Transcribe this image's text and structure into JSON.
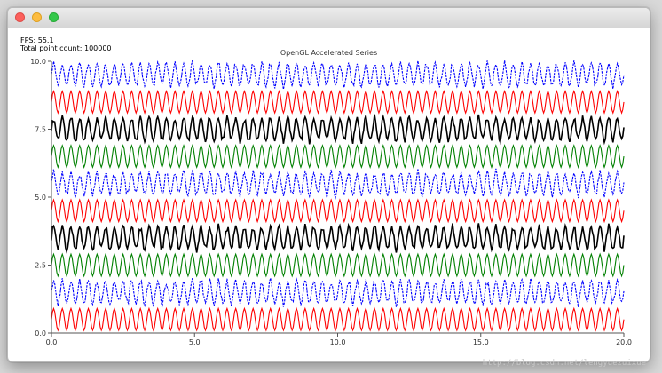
{
  "window": {
    "fps_label": "FPS: 55.1",
    "point_count_label": "Total point count: 100000"
  },
  "chart_data": {
    "type": "line",
    "title": "OpenGL Accelerated Series",
    "xlabel": "",
    "ylabel": "",
    "xlim": [
      0.0,
      20.0
    ],
    "ylim": [
      0.0,
      10.0
    ],
    "x_ticks": [
      "0.0",
      "5.0",
      "10.0",
      "15.0",
      "20.0"
    ],
    "y_ticks": [
      "0.0",
      "2.5",
      "5.0",
      "7.5",
      "10.0"
    ],
    "grid": false,
    "series": [
      {
        "color": "#ff0000",
        "style": "sine",
        "center": 0.5,
        "amplitude": 0.4,
        "cycles": 66
      },
      {
        "color": "#0000ff",
        "style": "noisy-dashed",
        "center": 1.5,
        "amplitude": 0.45,
        "cycles": 66
      },
      {
        "color": "#008000",
        "style": "sine",
        "center": 2.5,
        "amplitude": 0.4,
        "cycles": 66
      },
      {
        "color": "#000000",
        "style": "noisy",
        "center": 3.5,
        "amplitude": 0.45,
        "cycles": 66
      },
      {
        "color": "#ff0000",
        "style": "sine",
        "center": 4.5,
        "amplitude": 0.4,
        "cycles": 66
      },
      {
        "color": "#0000ff",
        "style": "noisy-dashed",
        "center": 5.5,
        "amplitude": 0.45,
        "cycles": 66
      },
      {
        "color": "#008000",
        "style": "sine",
        "center": 6.5,
        "amplitude": 0.4,
        "cycles": 66
      },
      {
        "color": "#000000",
        "style": "noisy",
        "center": 7.5,
        "amplitude": 0.45,
        "cycles": 66
      },
      {
        "color": "#ff0000",
        "style": "sine",
        "center": 8.5,
        "amplitude": 0.4,
        "cycles": 66
      },
      {
        "color": "#0000ff",
        "style": "noisy-dashed",
        "center": 9.5,
        "amplitude": 0.45,
        "cycles": 66
      }
    ]
  },
  "watermark": "http://blog.csdn.net/lengyuezuixue"
}
